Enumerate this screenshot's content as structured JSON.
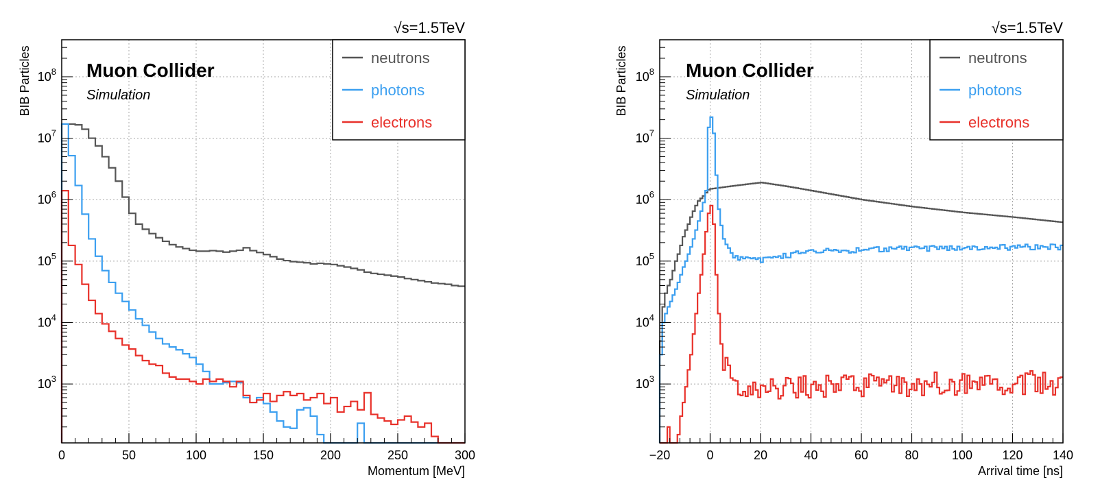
{
  "chart_data": [
    {
      "type": "step",
      "energy_label": "√s=1.5TeV",
      "experiment": "Muon Collider",
      "subtitle": "Simulation",
      "xlabel": "Momentum [MeV]",
      "ylabel": "BIB Particles",
      "yscale": "log",
      "xlim": [
        0,
        300
      ],
      "ylim": [
        110,
        400000000
      ],
      "grid": true,
      "legend_position": "top-right",
      "bin_width": 5,
      "x_ticks": [
        0,
        50,
        100,
        150,
        200,
        250,
        300
      ],
      "y_ticks": [
        {
          "value": 1000,
          "base": "10",
          "exp": "3"
        },
        {
          "value": 10000,
          "base": "10",
          "exp": "4"
        },
        {
          "value": 100000,
          "base": "10",
          "exp": "5"
        },
        {
          "value": 1000000,
          "base": "10",
          "exp": "6"
        },
        {
          "value": 10000000,
          "base": "10",
          "exp": "7"
        },
        {
          "value": 100000000,
          "base": "10",
          "exp": "8"
        }
      ],
      "series": [
        {
          "name": "neutrons",
          "color": "#555555",
          "values": [
            17000000,
            17000000,
            16500000,
            14000000,
            10000000,
            7500000,
            5000000,
            3300000,
            2000000,
            1100000,
            600000,
            400000,
            330000,
            280000,
            240000,
            210000,
            185000,
            170000,
            160000,
            150000,
            145000,
            145000,
            148000,
            145000,
            140000,
            145000,
            150000,
            165000,
            148000,
            138000,
            128000,
            118000,
            108000,
            102000,
            98000,
            96000,
            94000,
            90000,
            92000,
            90000,
            88000,
            84000,
            80000,
            76000,
            72000,
            66000,
            63000,
            61000,
            59000,
            57000,
            55000,
            52000,
            50000,
            48000,
            46000,
            44000,
            43000,
            42000,
            40000,
            39000
          ]
        },
        {
          "name": "photons",
          "color": "#3b9ff0",
          "values": [
            17000000,
            5200000,
            1700000,
            580000,
            230000,
            120000,
            70000,
            45000,
            30000,
            22000,
            16000,
            11500,
            9000,
            7000,
            5500,
            4500,
            4000,
            3600,
            3100,
            2700,
            2100,
            1600,
            1000,
            1000,
            1050,
            1100,
            1050,
            600,
            500,
            600,
            480,
            350,
            250,
            200,
            190,
            380,
            410,
            300,
            150,
            100,
            100,
            100,
            100,
            100,
            230,
            100,
            100,
            100,
            100,
            100,
            100,
            100,
            100,
            100,
            100,
            100,
            100,
            100,
            100,
            100
          ]
        },
        {
          "name": "electrons",
          "color": "#e8312a",
          "values": [
            1400000,
            180000,
            88000,
            42000,
            23000,
            14000,
            9500,
            7200,
            5500,
            4300,
            3700,
            2900,
            2400,
            2100,
            2000,
            1500,
            1300,
            1200,
            1200,
            1100,
            1000,
            1200,
            1100,
            1200,
            1100,
            900,
            1100,
            650,
            500,
            550,
            700,
            520,
            650,
            750,
            650,
            700,
            550,
            600,
            700,
            480,
            600,
            350,
            430,
            520,
            380,
            720,
            320,
            280,
            250,
            220,
            260,
            300,
            240,
            200,
            230,
            140,
            100,
            100,
            100,
            100
          ]
        }
      ]
    },
    {
      "type": "step",
      "energy_label": "√s=1.5TeV",
      "experiment": "Muon Collider",
      "subtitle": "Simulation",
      "xlabel": "Arrival time [ns]",
      "ylabel": "BIB Particles",
      "yscale": "log",
      "xlim": [
        -20,
        140
      ],
      "ylim": [
        110,
        400000000
      ],
      "grid": true,
      "legend_position": "top-right",
      "bin_width": 1,
      "x_ticks": [
        -20,
        0,
        20,
        40,
        60,
        80,
        100,
        120,
        140
      ],
      "x_tick_labels": [
        "−20",
        "0",
        "20",
        "40",
        "60",
        "80",
        "100",
        "120",
        "140"
      ],
      "y_ticks": [
        {
          "value": 1000,
          "base": "10",
          "exp": "3"
        },
        {
          "value": 10000,
          "base": "10",
          "exp": "4"
        },
        {
          "value": 100000,
          "base": "10",
          "exp": "5"
        },
        {
          "value": 1000000,
          "base": "10",
          "exp": "6"
        },
        {
          "value": 10000000,
          "base": "10",
          "exp": "7"
        },
        {
          "value": 100000000,
          "base": "10",
          "exp": "8"
        }
      ],
      "series": [
        {
          "name": "neutrons",
          "color": "#555555",
          "keypoints": [
            [
              -20,
              5000
            ],
            [
              -19,
              18000
            ],
            [
              -18,
              30000
            ],
            [
              -17,
              40000
            ],
            [
              -16,
              50000
            ],
            [
              -15,
              70000
            ],
            [
              -14,
              100000
            ],
            [
              -13,
              130000
            ],
            [
              -12,
              180000
            ],
            [
              -11,
              250000
            ],
            [
              -10,
              320000
            ],
            [
              -9,
              400000
            ],
            [
              -8,
              520000
            ],
            [
              -7,
              650000
            ],
            [
              -6,
              800000
            ],
            [
              -5,
              950000
            ],
            [
              -4,
              1050000
            ],
            [
              -3,
              1150000
            ],
            [
              -2,
              1300000
            ],
            [
              -1,
              1450000
            ],
            [
              0,
              1500000
            ],
            [
              5,
              1600000
            ],
            [
              10,
              1700000
            ],
            [
              15,
              1800000
            ],
            [
              20,
              1900000
            ],
            [
              30,
              1650000
            ],
            [
              40,
              1400000
            ],
            [
              60,
              1000000
            ],
            [
              80,
              770000
            ],
            [
              100,
              620000
            ],
            [
              120,
              520000
            ],
            [
              139,
              430000
            ]
          ],
          "noise": 0
        },
        {
          "name": "photons",
          "color": "#3b9ff0",
          "keypoints": [
            [
              -20,
              3000
            ],
            [
              -19,
              10000
            ],
            [
              -18,
              14000
            ],
            [
              -17,
              18000
            ],
            [
              -16,
              22000
            ],
            [
              -15,
              28000
            ],
            [
              -14,
              35000
            ],
            [
              -13,
              45000
            ],
            [
              -12,
              60000
            ],
            [
              -11,
              80000
            ],
            [
              -10,
              100000
            ],
            [
              -9,
              130000
            ],
            [
              -8,
              170000
            ],
            [
              -7,
              230000
            ],
            [
              -6,
              320000
            ],
            [
              -5,
              450000
            ],
            [
              -4,
              650000
            ],
            [
              -3,
              900000
            ],
            [
              -2,
              1400000
            ],
            [
              -1,
              15000000
            ],
            [
              0,
              22000000
            ],
            [
              1,
              12000000
            ],
            [
              2,
              2500000
            ],
            [
              3,
              700000
            ],
            [
              4,
              380000
            ],
            [
              5,
              250000
            ],
            [
              6,
              190000
            ],
            [
              7,
              160000
            ],
            [
              8,
              140000
            ],
            [
              9,
              125000
            ],
            [
              10,
              115000
            ],
            [
              12,
              108000
            ],
            [
              15,
              104000
            ],
            [
              20,
              104000
            ],
            [
              30,
              125000
            ],
            [
              40,
              140000
            ],
            [
              60,
              155000
            ],
            [
              80,
              160000
            ],
            [
              100,
              165000
            ],
            [
              120,
              168000
            ],
            [
              139,
              170000
            ]
          ],
          "noise": 0.025
        },
        {
          "name": "electrons",
          "color": "#e8312a",
          "keypoints": [
            [
              -20,
              100
            ],
            [
              -19,
              100
            ],
            [
              -18,
              110
            ],
            [
              -17,
              200
            ],
            [
              -16,
              100
            ],
            [
              -15,
              100
            ],
            [
              -14,
              100
            ],
            [
              -13,
              150
            ],
            [
              -12,
              300
            ],
            [
              -11,
              500
            ],
            [
              -10,
              900
            ],
            [
              -9,
              1700
            ],
            [
              -8,
              3000
            ],
            [
              -7,
              6500
            ],
            [
              -6,
              14000
            ],
            [
              -5,
              30000
            ],
            [
              -4,
              60000
            ],
            [
              -3,
              130000
            ],
            [
              -2,
              300000
            ],
            [
              -1,
              600000
            ],
            [
              0,
              800000
            ],
            [
              1,
              400000
            ],
            [
              2,
              60000
            ],
            [
              3,
              14000
            ],
            [
              4,
              4500
            ],
            [
              5,
              2400
            ],
            [
              6,
              1800
            ],
            [
              7,
              1500
            ],
            [
              8,
              1300
            ],
            [
              9,
              1100
            ],
            [
              10,
              950
            ],
            [
              15,
              850
            ],
            [
              20,
              870
            ],
            [
              40,
              900
            ],
            [
              60,
              950
            ],
            [
              80,
              1000
            ],
            [
              100,
              1000
            ],
            [
              120,
              1050
            ],
            [
              139,
              1050
            ]
          ],
          "noise": 0.11
        }
      ]
    }
  ]
}
